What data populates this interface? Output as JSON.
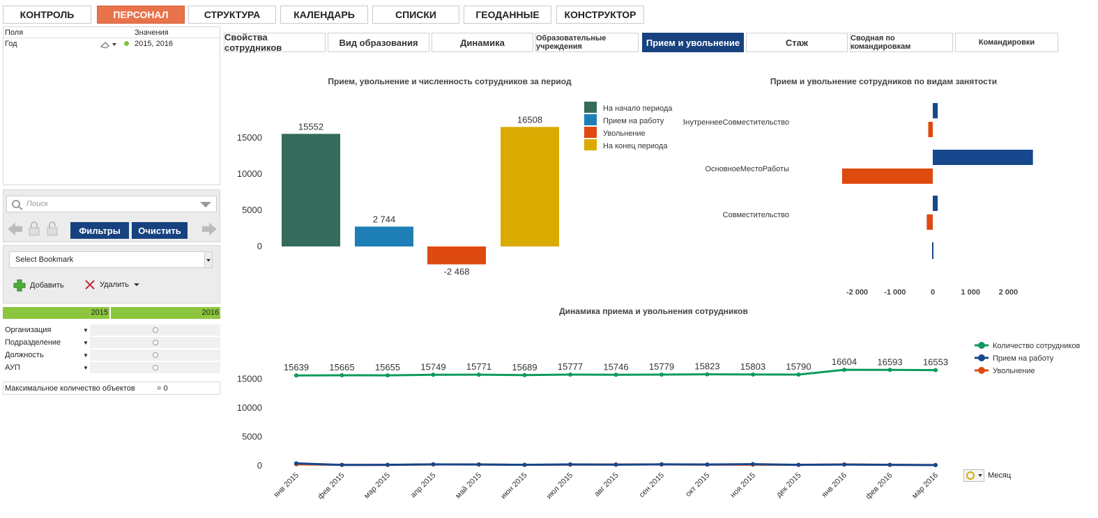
{
  "top_nav": [
    {
      "label": "КОНТРОЛЬ",
      "active": false
    },
    {
      "label": "ПЕРСОНАЛ",
      "active": true
    },
    {
      "label": "СТРУКТУРА",
      "active": false
    },
    {
      "label": "КАЛЕНДАРЬ",
      "active": false
    },
    {
      "label": "СПИСКИ",
      "active": false
    },
    {
      "label": "ГЕОДАННЫЕ",
      "active": false
    },
    {
      "label": "КОНСТРУКТОР",
      "active": false
    }
  ],
  "tabs": [
    {
      "label": "Свойства сотрудников",
      "active": false
    },
    {
      "label": "Вид образования",
      "active": false
    },
    {
      "label": "Динамика",
      "active": false
    },
    {
      "label": "Образовательные учреждения",
      "active": false
    },
    {
      "label": "Прием и увольнение",
      "active": true
    },
    {
      "label": "Стаж",
      "active": false
    },
    {
      "label": "Сводная по командировкам",
      "active": false
    },
    {
      "label": "Командировки",
      "active": false
    }
  ],
  "current_selections": {
    "col_fields": "Поля",
    "col_values": "Значения",
    "field": "Год",
    "value": "2015, 2016"
  },
  "search": {
    "placeholder": "Поиск"
  },
  "buttons": {
    "filters": "Фильтры",
    "clear": "Очистить",
    "add": "Добавить",
    "delete": "Удалить"
  },
  "bookmark": {
    "selected": "Select Bookmark"
  },
  "years": [
    "2015",
    "2016"
  ],
  "list_boxes": [
    "Организация",
    "Подразделение",
    "Должность",
    "АУП"
  ],
  "max_objects": {
    "label": "Максимальное количество объектов",
    "value": "= 0"
  },
  "month_selector": {
    "label": "Месяц"
  },
  "colors": {
    "accent": "#e8734a",
    "nav_active": "#17427f",
    "green": "#8cc63f"
  },
  "chart_data": [
    {
      "type": "bar",
      "title": "Прием, увольнение и численность сотрудников за период",
      "categories": [
        "На начало периода",
        "Прием на работу",
        "Увольнение",
        "На конец периода"
      ],
      "values": [
        15552,
        2744,
        -2468,
        16508
      ],
      "data_labels": [
        "15552",
        "2 744",
        "-2 468",
        "16508"
      ],
      "colors": [
        "#356b5c",
        "#1d7fb5",
        "#de4a10",
        "#d9aa00"
      ],
      "yticks": [
        "15000",
        "10000",
        "5000",
        "0"
      ],
      "ylim": [
        -2500,
        17000
      ],
      "legend": "right"
    },
    {
      "type": "bar",
      "orientation": "horizontal",
      "title": "Прием и увольнение сотрудников по видам занятости",
      "categories": [
        "ВнутреннееСовместительство",
        "ОсновноеМестоРаботы",
        "Совместительство"
      ],
      "series": [
        {
          "values": [
            130,
            2650,
            130
          ],
          "color": "#17478c"
        },
        {
          "values": [
            -120,
            -2400,
            -160
          ],
          "color": "#de4a10"
        }
      ],
      "extra_tick_bar": {
        "value": 10
      },
      "xticks": [
        "-2 000",
        "-1 000",
        "0",
        "1 000",
        "2 000"
      ],
      "xlim": [
        -2500,
        2700
      ]
    },
    {
      "type": "line",
      "title": "Динамика приема и увольнения сотрудников",
      "x": [
        "янв 2015",
        "фев 2015",
        "мар 2015",
        "апр 2015",
        "май 2015",
        "июн 2015",
        "июл 2015",
        "авг 2015",
        "сен 2015",
        "окт 2015",
        "ноя 2015",
        "дек 2015",
        "янв 2016",
        "фев 2016",
        "мар 2016"
      ],
      "series": [
        {
          "name": "Количество сотрудников",
          "color": "#0e9a5c",
          "values": [
            15639,
            15665,
            15655,
            15749,
            15771,
            15689,
            15777,
            15746,
            15779,
            15823,
            15803,
            15790,
            16604,
            16593,
            16553
          ],
          "labels": [
            "15639",
            "15665",
            "15655",
            "15749",
            "15771",
            "15689",
            "15777",
            "15746",
            "15779",
            "15823",
            "15803",
            "15790",
            "16604",
            "16593",
            "16553"
          ]
        },
        {
          "name": "Прием на работу",
          "color": "#17478c",
          "values": [
            420,
            150,
            160,
            250,
            230,
            170,
            240,
            190,
            250,
            230,
            280,
            170,
            210,
            160,
            120
          ]
        },
        {
          "name": "Увольнение",
          "color": "#de4a10",
          "values": [
            250,
            160,
            150,
            220,
            230,
            160,
            200,
            220,
            220,
            200,
            190,
            160,
            240,
            170,
            130
          ]
        }
      ],
      "yticks": [
        "15000",
        "10000",
        "5000",
        "0"
      ],
      "ylim": [
        0,
        17000
      ],
      "legend": "top-right"
    }
  ]
}
